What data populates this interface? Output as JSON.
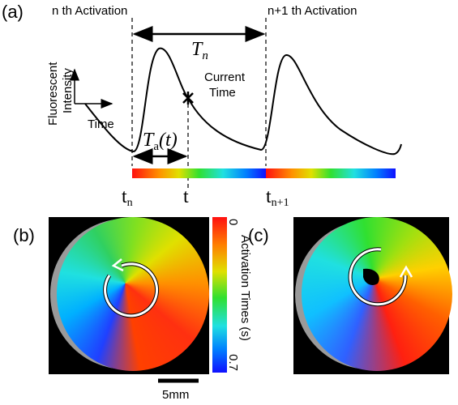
{
  "panels": {
    "a": "(a)",
    "b": "(b)",
    "c": "(c)"
  },
  "activation_labels": [
    "n th Activation",
    "n+1 th Activation"
  ],
  "period": {
    "symbol": "T",
    "sub": "n"
  },
  "current_time": [
    "Current",
    "Time"
  ],
  "y_axis_label": [
    "Fluorescent",
    "Intensity"
  ],
  "x_axis_label": "Time",
  "elapsed": {
    "symbol": "T",
    "sub": "a",
    "arg": "(t)"
  },
  "time_marks": [
    {
      "symbol": "t",
      "sub": "n"
    },
    {
      "symbol": "t"
    },
    {
      "symbol": "t",
      "sub": "n+1"
    }
  ],
  "colorbar": {
    "title": "Activation Times (s)",
    "ticks": [
      0,
      0.7
    ]
  },
  "scale_bar": "5mm"
}
